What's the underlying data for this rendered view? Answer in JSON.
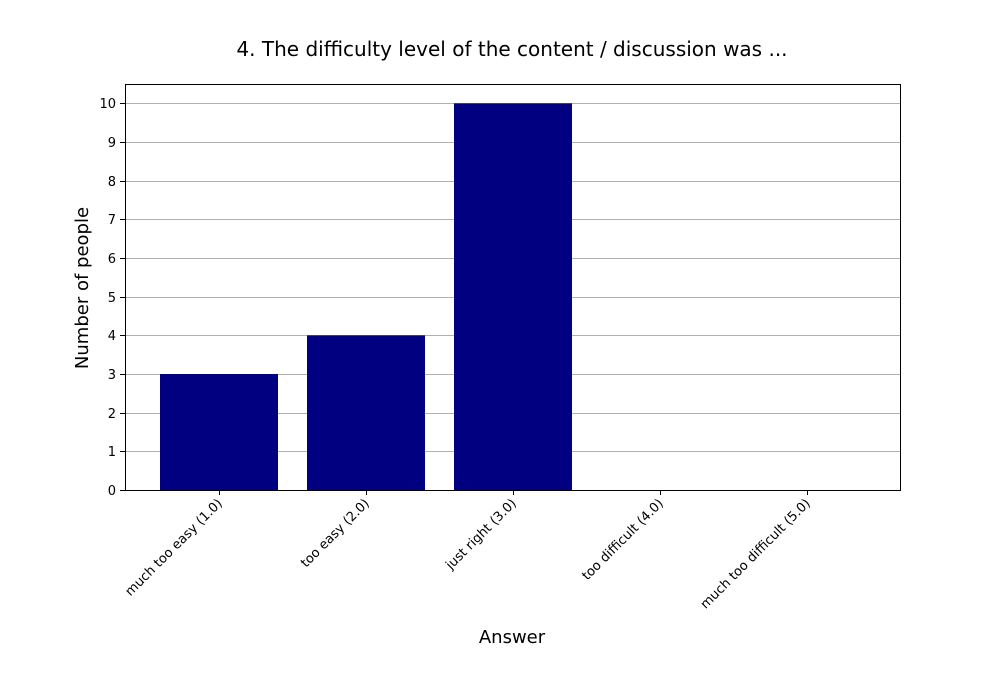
{
  "chart_data": {
    "type": "bar",
    "title": "4. The difficulty level of the content / discussion was ...",
    "xlabel": "Answer",
    "ylabel": "Number of people",
    "categories": [
      "much too easy (1.0)",
      "too easy (2.0)",
      "just right (3.0)",
      "too difficult (4.0)",
      "much too difficult (5.0)"
    ],
    "values": [
      3,
      4,
      10,
      0,
      0
    ],
    "ylim": [
      0,
      10.5
    ],
    "yticks": [
      0,
      1,
      2,
      3,
      4,
      5,
      6,
      7,
      8,
      9,
      10
    ],
    "grid": "y-axis",
    "bar_color": "#000080"
  }
}
